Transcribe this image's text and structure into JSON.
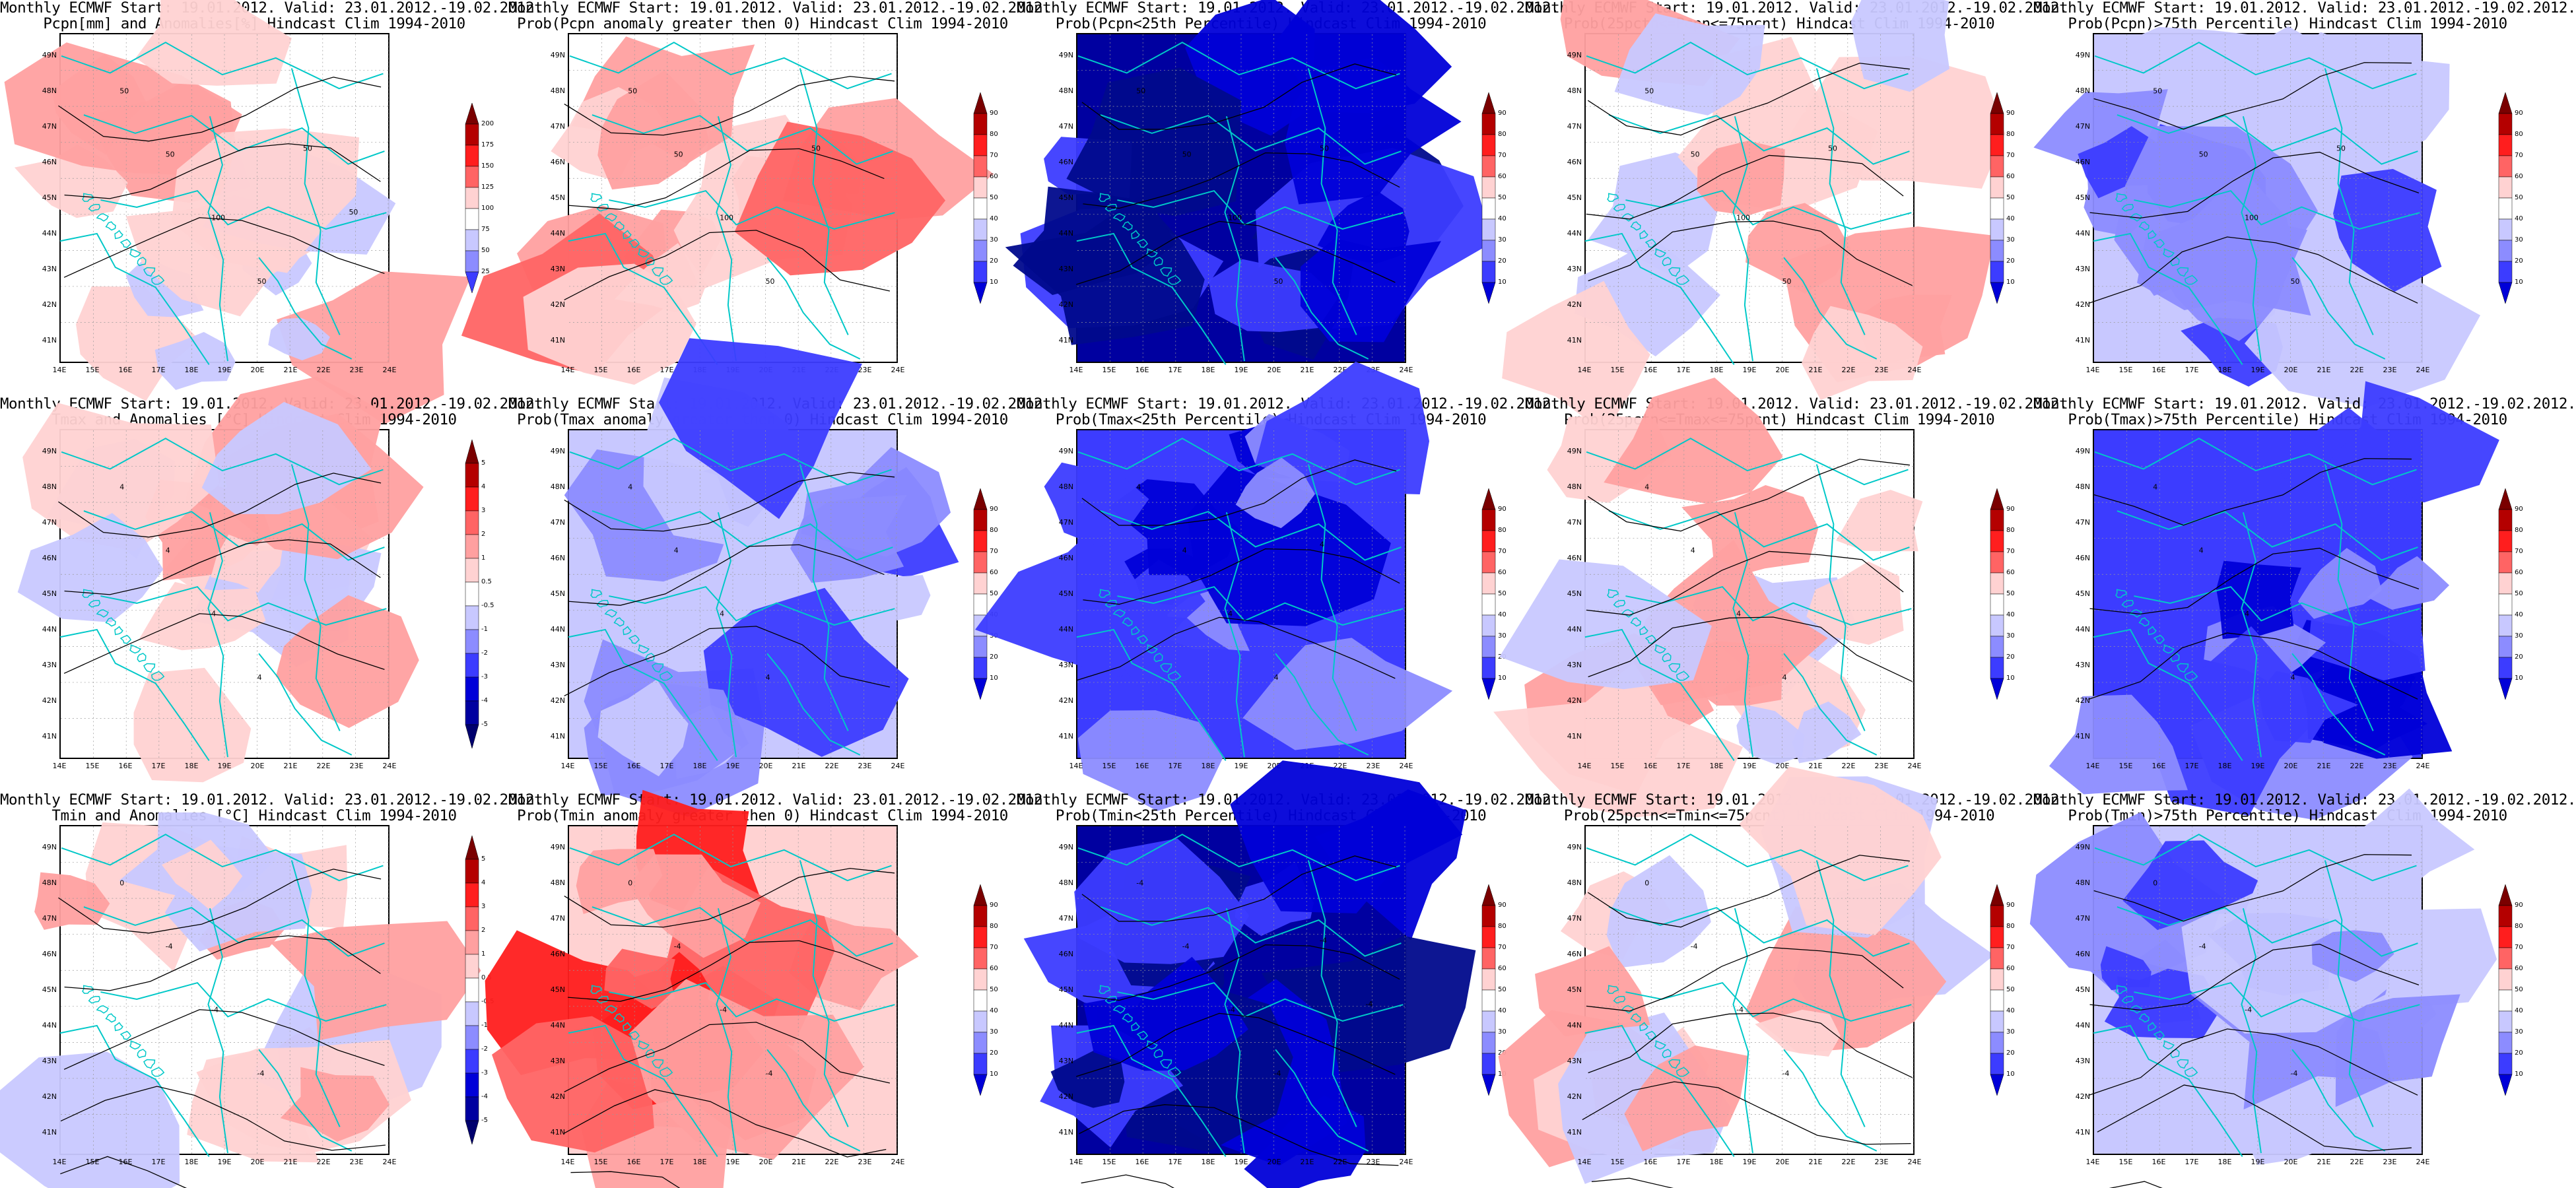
{
  "colors": {
    "blue_scale": [
      "#000a8c",
      "#0000d8",
      "#3c3cff",
      "#8c8cff",
      "#c8c8ff"
    ],
    "red_scale": [
      "#ffd2d2",
      "#ffa0a0",
      "#ff6464",
      "#ff1e1e",
      "#b40000"
    ],
    "river": "#00c8c8",
    "contour": "#000000",
    "neutral": "#ffffff"
  },
  "panels": [
    {
      "title1": "Monthly ECMWF Start: 19.01.2012. Valid: 23.01.2012.-19.02.2012.",
      "title2": "Pcpn[mm] and Anomalies[%] Hindcast Clim 1994-2010",
      "cbar_labels": [
        "200",
        "175",
        "150",
        "125",
        "100",
        "75",
        "50",
        "25"
      ],
      "contour_labels": [
        "50",
        "50",
        "100",
        "50",
        "50",
        "50"
      ],
      "base": 2,
      "contour_count": 3
    },
    {
      "title1": "Monthly ECMWF Start: 19.01.2012. Valid: 23.01.2012.-19.02.2012.",
      "title2": "Prob(Pcpn anomaly greater then 0) Hindcast Clim 1994-2010",
      "cbar_labels": [
        "90",
        "80",
        "70",
        "60",
        "50",
        "40",
        "30",
        "20",
        "10"
      ],
      "contour_labels": [
        "50",
        "50",
        "100",
        "50",
        "50"
      ],
      "base": 6,
      "contour_count": 3
    },
    {
      "title1": "Monthly ECMWF Start: 19.01.2012. Valid: 23.01.2012.-19.02.2012.",
      "title2": "Prob(Pcpn<25th Percentile) Hindcast Clim 1994-2010",
      "cbar_labels": [
        "90",
        "80",
        "70",
        "60",
        "50",
        "40",
        "30",
        "20",
        "10"
      ],
      "contour_labels": [
        "50",
        "50",
        "100",
        "50",
        "50"
      ],
      "base": 0,
      "contour_count": 3
    },
    {
      "title1": "Monthly ECMWF Start: 19.01.2012. Valid: 23.01.2012.-19.02.2012.",
      "title2": "Prob(25pctn<=Pcpn<=75pcnt) Hindcast Clim 1994-2010",
      "cbar_labels": [
        "90",
        "80",
        "70",
        "60",
        "50",
        "40",
        "30",
        "20",
        "10"
      ],
      "contour_labels": [
        "50",
        "50",
        "100",
        "50",
        "50"
      ],
      "base": 5,
      "contour_count": 3
    },
    {
      "title1": "Monthly ECMWF Start: 19.01.2012. Valid: 23.01.2012.-19.02.2012.",
      "title2": "Prob(Pcpn)>75th Percentile) Hindcast Clim 1994-2010",
      "cbar_labels": [
        "90",
        "80",
        "70",
        "60",
        "50",
        "40",
        "30",
        "20",
        "10"
      ],
      "contour_labels": [
        "50",
        "50",
        "100",
        "50",
        "50"
      ],
      "base": 3,
      "contour_count": 3
    },
    {
      "title1": "Monthly ECMWF Start: 19.01.2012. Valid: 23.01.2012.-19.02.2012.",
      "title2": "Tmax and Anomalies [°C] Hindcast Clim 1994-2010",
      "cbar_labels": [
        "5",
        "4",
        "3",
        "2",
        "1",
        "0.5",
        "-0.5",
        "-1",
        "-2",
        "-3",
        "-4",
        "-5"
      ],
      "contour_labels": [
        "4",
        "4",
        "4",
        "4"
      ],
      "base": 2,
      "contour_count": 3
    },
    {
      "title1": "Monthly ECMWF Start: 19.01.2012. Valid: 23.01.2012.-19.02.2012.",
      "title2": "Prob(Tmax anomaly greater then 0) Hindcast Clim 1994-2010",
      "cbar_labels": [
        "90",
        "80",
        "70",
        "60",
        "50",
        "40",
        "30",
        "20",
        "10"
      ],
      "contour_labels": [
        "4",
        "4",
        "4",
        "4"
      ],
      "base": 3,
      "contour_count": 3
    },
    {
      "title1": "Monthly ECMWF Start: 19.01.2012. Valid: 23.01.2012.-19.02.2012.",
      "title2": "Prob(Tmax<25th Percentile) Hindcast Clim 1994-2010",
      "cbar_labels": [
        "90",
        "80",
        "70",
        "60",
        "50",
        "40",
        "30",
        "20",
        "10"
      ],
      "contour_labels": [
        "4",
        "4",
        "4",
        "4",
        "4"
      ],
      "base": 1,
      "contour_count": 3
    },
    {
      "title1": "Monthly ECMWF Start: 19.01.2012. Valid: 23.01.2012.-19.02.2012.",
      "title2": "Prob(25pctn<=Tmax<=75pcnt) Hindcast Clim 1994-2010",
      "cbar_labels": [
        "90",
        "80",
        "70",
        "60",
        "50",
        "40",
        "30",
        "20",
        "10"
      ],
      "contour_labels": [
        "4",
        "4",
        "4",
        "4"
      ],
      "base": 5,
      "contour_count": 3
    },
    {
      "title1": "Monthly ECMWF Start: 19.01.2012. Valid: 23.01.2012.-19.02.2012.",
      "title2": "Prob(Tmax)>75th Percentile) Hindcast Clim 1994-2010",
      "cbar_labels": [
        "90",
        "80",
        "70",
        "60",
        "50",
        "40",
        "30",
        "20",
        "10"
      ],
      "contour_labels": [
        "4",
        "4",
        "4",
        "4"
      ],
      "base": 1,
      "contour_count": 3
    },
    {
      "title1": "Monthly ECMWF Start: 19.01.2012. Valid: 23.01.2012.-19.02.2012.",
      "title2": "Tmin and Anomalies [°C] Hindcast Clim 1994-2010",
      "cbar_labels": [
        "5",
        "4",
        "3",
        "2",
        "1",
        "0.5",
        "-0.5",
        "-1",
        "-2",
        "-3",
        "-4",
        "-5"
      ],
      "contour_labels": [
        "0",
        "-4",
        "-4",
        "-4"
      ],
      "base": 5,
      "contour_count": 5
    },
    {
      "title1": "Monthly ECMWF Start: 19.01.2012. Valid: 23.01.2012.-19.02.2012.",
      "title2": "Prob(Tmin anomaly greater then 0) Hindcast Clim 1994-2010",
      "cbar_labels": [
        "90",
        "80",
        "70",
        "60",
        "50",
        "40",
        "30",
        "20",
        "10"
      ],
      "contour_labels": [
        "0",
        "-4",
        "-4",
        "-4"
      ],
      "base": 7,
      "contour_count": 5
    },
    {
      "title1": "Monthly ECMWF Start: 19.01.2012. Valid: 23.01.2012.-19.02.2012.",
      "title2": "Prob(Tmin<25th Percentile) Hindcast Clim 1994-2010",
      "cbar_labels": [
        "90",
        "80",
        "70",
        "60",
        "50",
        "40",
        "30",
        "20",
        "10"
      ],
      "contour_labels": [
        "-4",
        "-4",
        "-4",
        "-4",
        "-4",
        "-4"
      ],
      "base": 0,
      "contour_count": 5
    },
    {
      "title1": "Monthly ECMWF Start: 19.01.2012. Valid: 23.01.2012.-19.02.2012.",
      "title2": "Prob(25pctn<=Tmin<=75pcnt) Hindcast Clim 1994-2010",
      "cbar_labels": [
        "90",
        "80",
        "70",
        "60",
        "50",
        "40",
        "30",
        "20",
        "10"
      ],
      "contour_labels": [
        "0",
        "-4",
        "-4",
        "-4"
      ],
      "base": 5,
      "contour_count": 5
    },
    {
      "title1": "Monthly ECMWF Start: 19.01.2012. Valid: 23.01.2012.-19.02.2012.",
      "title2": "Prob(Tmin)>75th Percentile) Hindcast Clim 1994-2010",
      "cbar_labels": [
        "90",
        "80",
        "70",
        "60",
        "50",
        "40",
        "30",
        "20",
        "10"
      ],
      "contour_labels": [
        "0",
        "-4",
        "-4",
        "-4"
      ],
      "base": 3,
      "contour_count": 5
    }
  ],
  "lat_labels": [
    "49N",
    "48N",
    "47N",
    "46N",
    "45N",
    "44N",
    "43N",
    "42N",
    "41N"
  ],
  "lon_labels": [
    "14E",
    "15E",
    "16E",
    "17E",
    "18E",
    "19E",
    "20E",
    "21E",
    "22E",
    "23E",
    "24E"
  ]
}
